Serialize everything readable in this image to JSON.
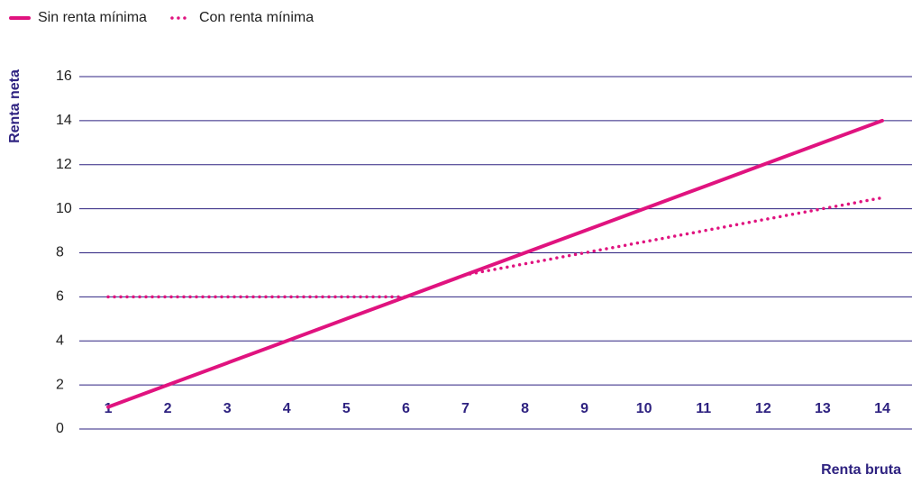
{
  "chart_data": {
    "type": "line",
    "x_label": "Renta bruta",
    "y_label": "Renta neta",
    "x": [
      1,
      2,
      3,
      4,
      5,
      6,
      7,
      8,
      9,
      10,
      11,
      12,
      13,
      14
    ],
    "series": [
      {
        "name": "Sin renta mínima",
        "color": "#e0137f",
        "style": "solid",
        "values": [
          1,
          2,
          3,
          4,
          5,
          6,
          7,
          8,
          9,
          10,
          11,
          12,
          13,
          14
        ]
      },
      {
        "name": "Con renta mínima",
        "color": "#e0137f",
        "style": "dotted",
        "values": [
          6,
          6,
          6,
          6,
          6,
          6,
          7,
          7.5,
          8,
          8.5,
          9,
          9.5,
          10,
          10.5
        ]
      }
    ],
    "xlim": [
      0.5,
      14.5
    ],
    "xticks": [
      1,
      2,
      3,
      4,
      5,
      6,
      7,
      8,
      9,
      10,
      11,
      12,
      13,
      14
    ],
    "ylim": [
      0,
      16
    ],
    "yticks": [
      0,
      2,
      4,
      6,
      8,
      10,
      12,
      14,
      16
    ],
    "grid": true
  }
}
